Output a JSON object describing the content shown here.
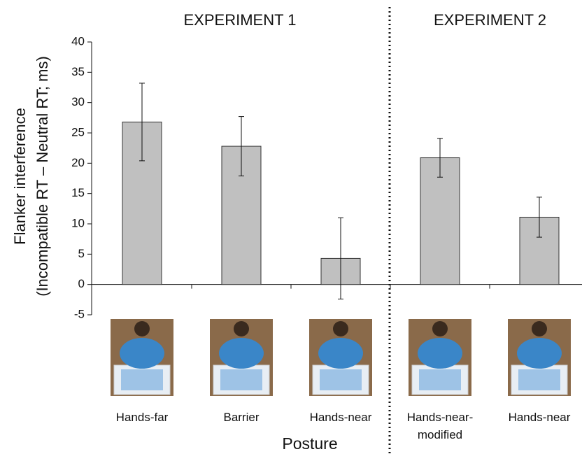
{
  "chart_data": {
    "type": "bar",
    "annotations": [
      "EXPERIMENT 1",
      "EXPERIMENT 2"
    ],
    "ylabel": [
      "Flanker interference",
      "(Incompatible RT – Neutral RT; ms)"
    ],
    "xlabel": "Posture",
    "categories": [
      "Hands-far",
      "Barrier",
      "Hands-near",
      "Hands-near-\nmodified",
      "Hands-near"
    ],
    "values": [
      26.8,
      22.8,
      4.3,
      20.9,
      11.1
    ],
    "errors": [
      6.4,
      4.9,
      6.7,
      3.2,
      3.3
    ],
    "color": "#c0c0c0",
    "ylim": [
      -5,
      40
    ],
    "yticks": [
      -5,
      0,
      5,
      10,
      15,
      20,
      25,
      30,
      35,
      40
    ],
    "grid": false
  }
}
